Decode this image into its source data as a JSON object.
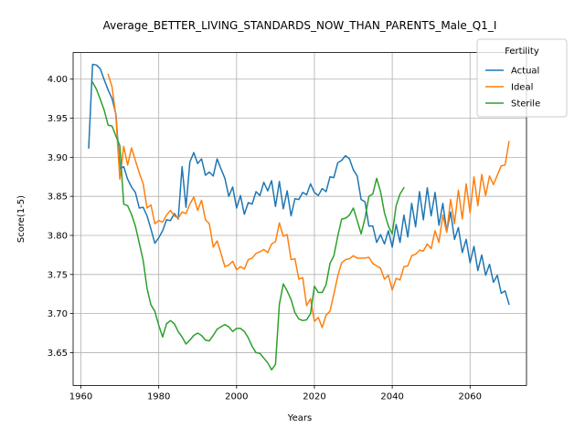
{
  "chart_data": {
    "type": "line",
    "title": "Average_BETTER_LIVING_STANDARDS_NOW_THAN_PARENTS_Male_Q1_I",
    "xlabel": "Years",
    "ylabel": "Score(1-5)",
    "xlim": [
      1958,
      2074.5
    ],
    "ylim": [
      3.608,
      4.034
    ],
    "x_ticks": [
      1960,
      1980,
      2000,
      2020,
      2040,
      2060
    ],
    "x_tick_labels": [
      "1960",
      "1980",
      "2000",
      "2020",
      "2040",
      "2060"
    ],
    "y_ticks": [
      3.65,
      3.7,
      3.75,
      3.8,
      3.85,
      3.9,
      3.95,
      4.0
    ],
    "y_tick_labels": [
      "3.65",
      "3.70",
      "3.75",
      "3.80",
      "3.85",
      "3.90",
      "3.95",
      "4.00"
    ],
    "grid": true,
    "legend": {
      "title": "Fertility",
      "position": "top-right"
    },
    "series": [
      {
        "name": "Actual",
        "color": "#1f77b4",
        "points": [
          [
            1962,
            3.912
          ],
          [
            1963,
            4.019
          ],
          [
            1964,
            4.018
          ],
          [
            1965,
            4.013
          ],
          [
            1966,
            3.999
          ],
          [
            1967,
            3.986
          ],
          [
            1968,
            3.975
          ],
          [
            1969,
            3.955
          ],
          [
            1970,
            3.885
          ],
          [
            1971,
            3.888
          ],
          [
            1972,
            3.872
          ],
          [
            1973,
            3.862
          ],
          [
            1974,
            3.855
          ],
          [
            1975,
            3.835
          ],
          [
            1976,
            3.836
          ],
          [
            1977,
            3.825
          ],
          [
            1978,
            3.808
          ],
          [
            1979,
            3.79
          ],
          [
            1980,
            3.797
          ],
          [
            1981,
            3.806
          ],
          [
            1982,
            3.82
          ],
          [
            1983,
            3.819
          ],
          [
            1984,
            3.828
          ],
          [
            1985,
            3.821
          ],
          [
            1986,
            3.888
          ],
          [
            1987,
            3.836
          ],
          [
            1988,
            3.894
          ],
          [
            1989,
            3.906
          ],
          [
            1990,
            3.892
          ],
          [
            1991,
            3.898
          ],
          [
            1992,
            3.877
          ],
          [
            1993,
            3.881
          ],
          [
            1994,
            3.876
          ],
          [
            1995,
            3.898
          ],
          [
            1996,
            3.885
          ],
          [
            1997,
            3.873
          ],
          [
            1998,
            3.85
          ],
          [
            1999,
            3.862
          ],
          [
            2000,
            3.835
          ],
          [
            2001,
            3.851
          ],
          [
            2002,
            3.827
          ],
          [
            2003,
            3.842
          ],
          [
            2004,
            3.84
          ],
          [
            2005,
            3.856
          ],
          [
            2006,
            3.851
          ],
          [
            2007,
            3.868
          ],
          [
            2008,
            3.857
          ],
          [
            2009,
            3.87
          ],
          [
            2010,
            3.837
          ],
          [
            2011,
            3.869
          ],
          [
            2012,
            3.834
          ],
          [
            2013,
            3.857
          ],
          [
            2014,
            3.825
          ],
          [
            2015,
            3.847
          ],
          [
            2016,
            3.846
          ],
          [
            2017,
            3.855
          ],
          [
            2018,
            3.852
          ],
          [
            2019,
            3.866
          ],
          [
            2020,
            3.855
          ],
          [
            2021,
            3.851
          ],
          [
            2022,
            3.86
          ],
          [
            2023,
            3.856
          ],
          [
            2024,
            3.875
          ],
          [
            2025,
            3.874
          ],
          [
            2026,
            3.893
          ],
          [
            2027,
            3.896
          ],
          [
            2028,
            3.902
          ],
          [
            2029,
            3.898
          ],
          [
            2030,
            3.884
          ],
          [
            2031,
            3.876
          ],
          [
            2032,
            3.846
          ],
          [
            2033,
            3.843
          ],
          [
            2034,
            3.812
          ],
          [
            2035,
            3.812
          ],
          [
            2036,
            3.791
          ],
          [
            2037,
            3.801
          ],
          [
            2038,
            3.789
          ],
          [
            2039,
            3.806
          ],
          [
            2040,
            3.785
          ],
          [
            2041,
            3.814
          ],
          [
            2042,
            3.791
          ],
          [
            2043,
            3.826
          ],
          [
            2044,
            3.798
          ],
          [
            2045,
            3.841
          ],
          [
            2046,
            3.811
          ],
          [
            2047,
            3.856
          ],
          [
            2048,
            3.82
          ],
          [
            2049,
            3.861
          ],
          [
            2050,
            3.825
          ],
          [
            2051,
            3.855
          ],
          [
            2052,
            3.813
          ],
          [
            2053,
            3.841
          ],
          [
            2054,
            3.805
          ],
          [
            2055,
            3.83
          ],
          [
            2056,
            3.795
          ],
          [
            2057,
            3.81
          ],
          [
            2058,
            3.778
          ],
          [
            2059,
            3.795
          ],
          [
            2060,
            3.765
          ],
          [
            2061,
            3.786
          ],
          [
            2062,
            3.755
          ],
          [
            2063,
            3.775
          ],
          [
            2064,
            3.749
          ],
          [
            2065,
            3.763
          ],
          [
            2066,
            3.74
          ],
          [
            2067,
            3.749
          ],
          [
            2068,
            3.726
          ],
          [
            2069,
            3.729
          ],
          [
            2070,
            3.712
          ]
        ]
      },
      {
        "name": "Ideal",
        "color": "#ff7f0e",
        "points": [
          [
            1967,
            4.006
          ],
          [
            1968,
            3.99
          ],
          [
            1969,
            3.952
          ],
          [
            1970,
            3.872
          ],
          [
            1971,
            3.914
          ],
          [
            1972,
            3.89
          ],
          [
            1973,
            3.912
          ],
          [
            1974,
            3.896
          ],
          [
            1975,
            3.88
          ],
          [
            1976,
            3.866
          ],
          [
            1977,
            3.835
          ],
          [
            1978,
            3.839
          ],
          [
            1979,
            3.815
          ],
          [
            1980,
            3.819
          ],
          [
            1981,
            3.817
          ],
          [
            1982,
            3.826
          ],
          [
            1983,
            3.832
          ],
          [
            1984,
            3.825
          ],
          [
            1985,
            3.822
          ],
          [
            1986,
            3.83
          ],
          [
            1987,
            3.828
          ],
          [
            1988,
            3.84
          ],
          [
            1989,
            3.849
          ],
          [
            1990,
            3.832
          ],
          [
            1991,
            3.845
          ],
          [
            1992,
            3.82
          ],
          [
            1993,
            3.815
          ],
          [
            1994,
            3.785
          ],
          [
            1995,
            3.793
          ],
          [
            1996,
            3.777
          ],
          [
            1997,
            3.76
          ],
          [
            1998,
            3.762
          ],
          [
            1999,
            3.767
          ],
          [
            2000,
            3.756
          ],
          [
            2001,
            3.76
          ],
          [
            2002,
            3.757
          ],
          [
            2003,
            3.769
          ],
          [
            2004,
            3.771
          ],
          [
            2005,
            3.777
          ],
          [
            2006,
            3.779
          ],
          [
            2007,
            3.782
          ],
          [
            2008,
            3.778
          ],
          [
            2009,
            3.789
          ],
          [
            2010,
            3.792
          ],
          [
            2011,
            3.816
          ],
          [
            2012,
            3.799
          ],
          [
            2013,
            3.801
          ],
          [
            2014,
            3.769
          ],
          [
            2015,
            3.77
          ],
          [
            2016,
            3.744
          ],
          [
            2017,
            3.746
          ],
          [
            2018,
            3.71
          ],
          [
            2019,
            3.719
          ],
          [
            2020,
            3.69
          ],
          [
            2021,
            3.695
          ],
          [
            2022,
            3.682
          ],
          [
            2023,
            3.698
          ],
          [
            2024,
            3.703
          ],
          [
            2025,
            3.725
          ],
          [
            2026,
            3.748
          ],
          [
            2027,
            3.765
          ],
          [
            2028,
            3.769
          ],
          [
            2029,
            3.77
          ],
          [
            2030,
            3.774
          ],
          [
            2031,
            3.771
          ],
          [
            2032,
            3.771
          ],
          [
            2033,
            3.771
          ],
          [
            2034,
            3.772
          ],
          [
            2035,
            3.764
          ],
          [
            2036,
            3.761
          ],
          [
            2037,
            3.758
          ],
          [
            2038,
            3.744
          ],
          [
            2039,
            3.749
          ],
          [
            2040,
            3.73
          ],
          [
            2041,
            3.745
          ],
          [
            2042,
            3.743
          ],
          [
            2043,
            3.76
          ],
          [
            2044,
            3.761
          ],
          [
            2045,
            3.774
          ],
          [
            2046,
            3.776
          ],
          [
            2047,
            3.781
          ],
          [
            2048,
            3.78
          ],
          [
            2049,
            3.789
          ],
          [
            2050,
            3.783
          ],
          [
            2051,
            3.806
          ],
          [
            2052,
            3.791
          ],
          [
            2053,
            3.826
          ],
          [
            2054,
            3.804
          ],
          [
            2055,
            3.846
          ],
          [
            2056,
            3.815
          ],
          [
            2057,
            3.858
          ],
          [
            2058,
            3.821
          ],
          [
            2059,
            3.866
          ],
          [
            2060,
            3.829
          ],
          [
            2061,
            3.875
          ],
          [
            2062,
            3.838
          ],
          [
            2063,
            3.878
          ],
          [
            2064,
            3.851
          ],
          [
            2065,
            3.876
          ],
          [
            2066,
            3.865
          ],
          [
            2067,
            3.877
          ],
          [
            2068,
            3.889
          ],
          [
            2069,
            3.89
          ],
          [
            2070,
            3.92
          ]
        ]
      },
      {
        "name": "Sterile",
        "color": "#2ca02c",
        "points": [
          [
            1963,
            3.996
          ],
          [
            1964,
            3.987
          ],
          [
            1965,
            3.974
          ],
          [
            1966,
            3.96
          ],
          [
            1967,
            3.941
          ],
          [
            1968,
            3.94
          ],
          [
            1969,
            3.927
          ],
          [
            1970,
            3.915
          ],
          [
            1971,
            3.84
          ],
          [
            1972,
            3.838
          ],
          [
            1973,
            3.827
          ],
          [
            1974,
            3.812
          ],
          [
            1975,
            3.79
          ],
          [
            1976,
            3.768
          ],
          [
            1977,
            3.732
          ],
          [
            1978,
            3.711
          ],
          [
            1979,
            3.703
          ],
          [
            1980,
            3.685
          ],
          [
            1981,
            3.67
          ],
          [
            1982,
            3.687
          ],
          [
            1983,
            3.691
          ],
          [
            1984,
            3.687
          ],
          [
            1985,
            3.677
          ],
          [
            1986,
            3.67
          ],
          [
            1987,
            3.661
          ],
          [
            1988,
            3.666
          ],
          [
            1989,
            3.672
          ],
          [
            1990,
            3.675
          ],
          [
            1991,
            3.672
          ],
          [
            1992,
            3.666
          ],
          [
            1993,
            3.665
          ],
          [
            1994,
            3.672
          ],
          [
            1995,
            3.68
          ],
          [
            1996,
            3.683
          ],
          [
            1997,
            3.686
          ],
          [
            1998,
            3.683
          ],
          [
            1999,
            3.677
          ],
          [
            2000,
            3.681
          ],
          [
            2001,
            3.681
          ],
          [
            2002,
            3.677
          ],
          [
            2003,
            3.669
          ],
          [
            2004,
            3.658
          ],
          [
            2005,
            3.65
          ],
          [
            2006,
            3.649
          ],
          [
            2007,
            3.643
          ],
          [
            2008,
            3.637
          ],
          [
            2009,
            3.628
          ],
          [
            2010,
            3.635
          ],
          [
            2011,
            3.712
          ],
          [
            2012,
            3.738
          ],
          [
            2013,
            3.729
          ],
          [
            2014,
            3.718
          ],
          [
            2015,
            3.701
          ],
          [
            2016,
            3.693
          ],
          [
            2017,
            3.691
          ],
          [
            2018,
            3.692
          ],
          [
            2019,
            3.7
          ],
          [
            2020,
            3.735
          ],
          [
            2021,
            3.727
          ],
          [
            2022,
            3.727
          ],
          [
            2023,
            3.737
          ],
          [
            2024,
            3.764
          ],
          [
            2025,
            3.774
          ],
          [
            2026,
            3.799
          ],
          [
            2027,
            3.821
          ],
          [
            2028,
            3.822
          ],
          [
            2029,
            3.826
          ],
          [
            2030,
            3.835
          ],
          [
            2031,
            3.819
          ],
          [
            2032,
            3.802
          ],
          [
            2033,
            3.822
          ],
          [
            2034,
            3.85
          ],
          [
            2035,
            3.853
          ],
          [
            2036,
            3.873
          ],
          [
            2037,
            3.856
          ],
          [
            2038,
            3.829
          ],
          [
            2039,
            3.812
          ],
          [
            2040,
            3.802
          ],
          [
            2041,
            3.838
          ],
          [
            2042,
            3.853
          ],
          [
            2043,
            3.861
          ]
        ]
      }
    ]
  }
}
